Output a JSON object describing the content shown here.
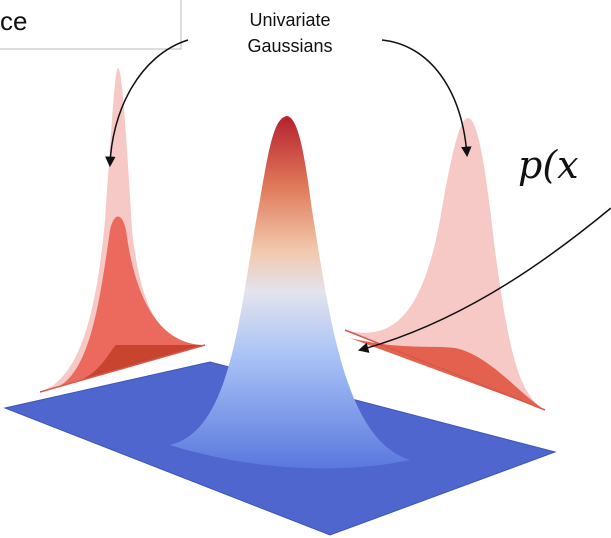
{
  "header": {
    "partial_title": "ce"
  },
  "annotations": {
    "univariate_line1": "Univariate",
    "univariate_line2": "Gaussians",
    "joint_partial": "p(x"
  }
}
